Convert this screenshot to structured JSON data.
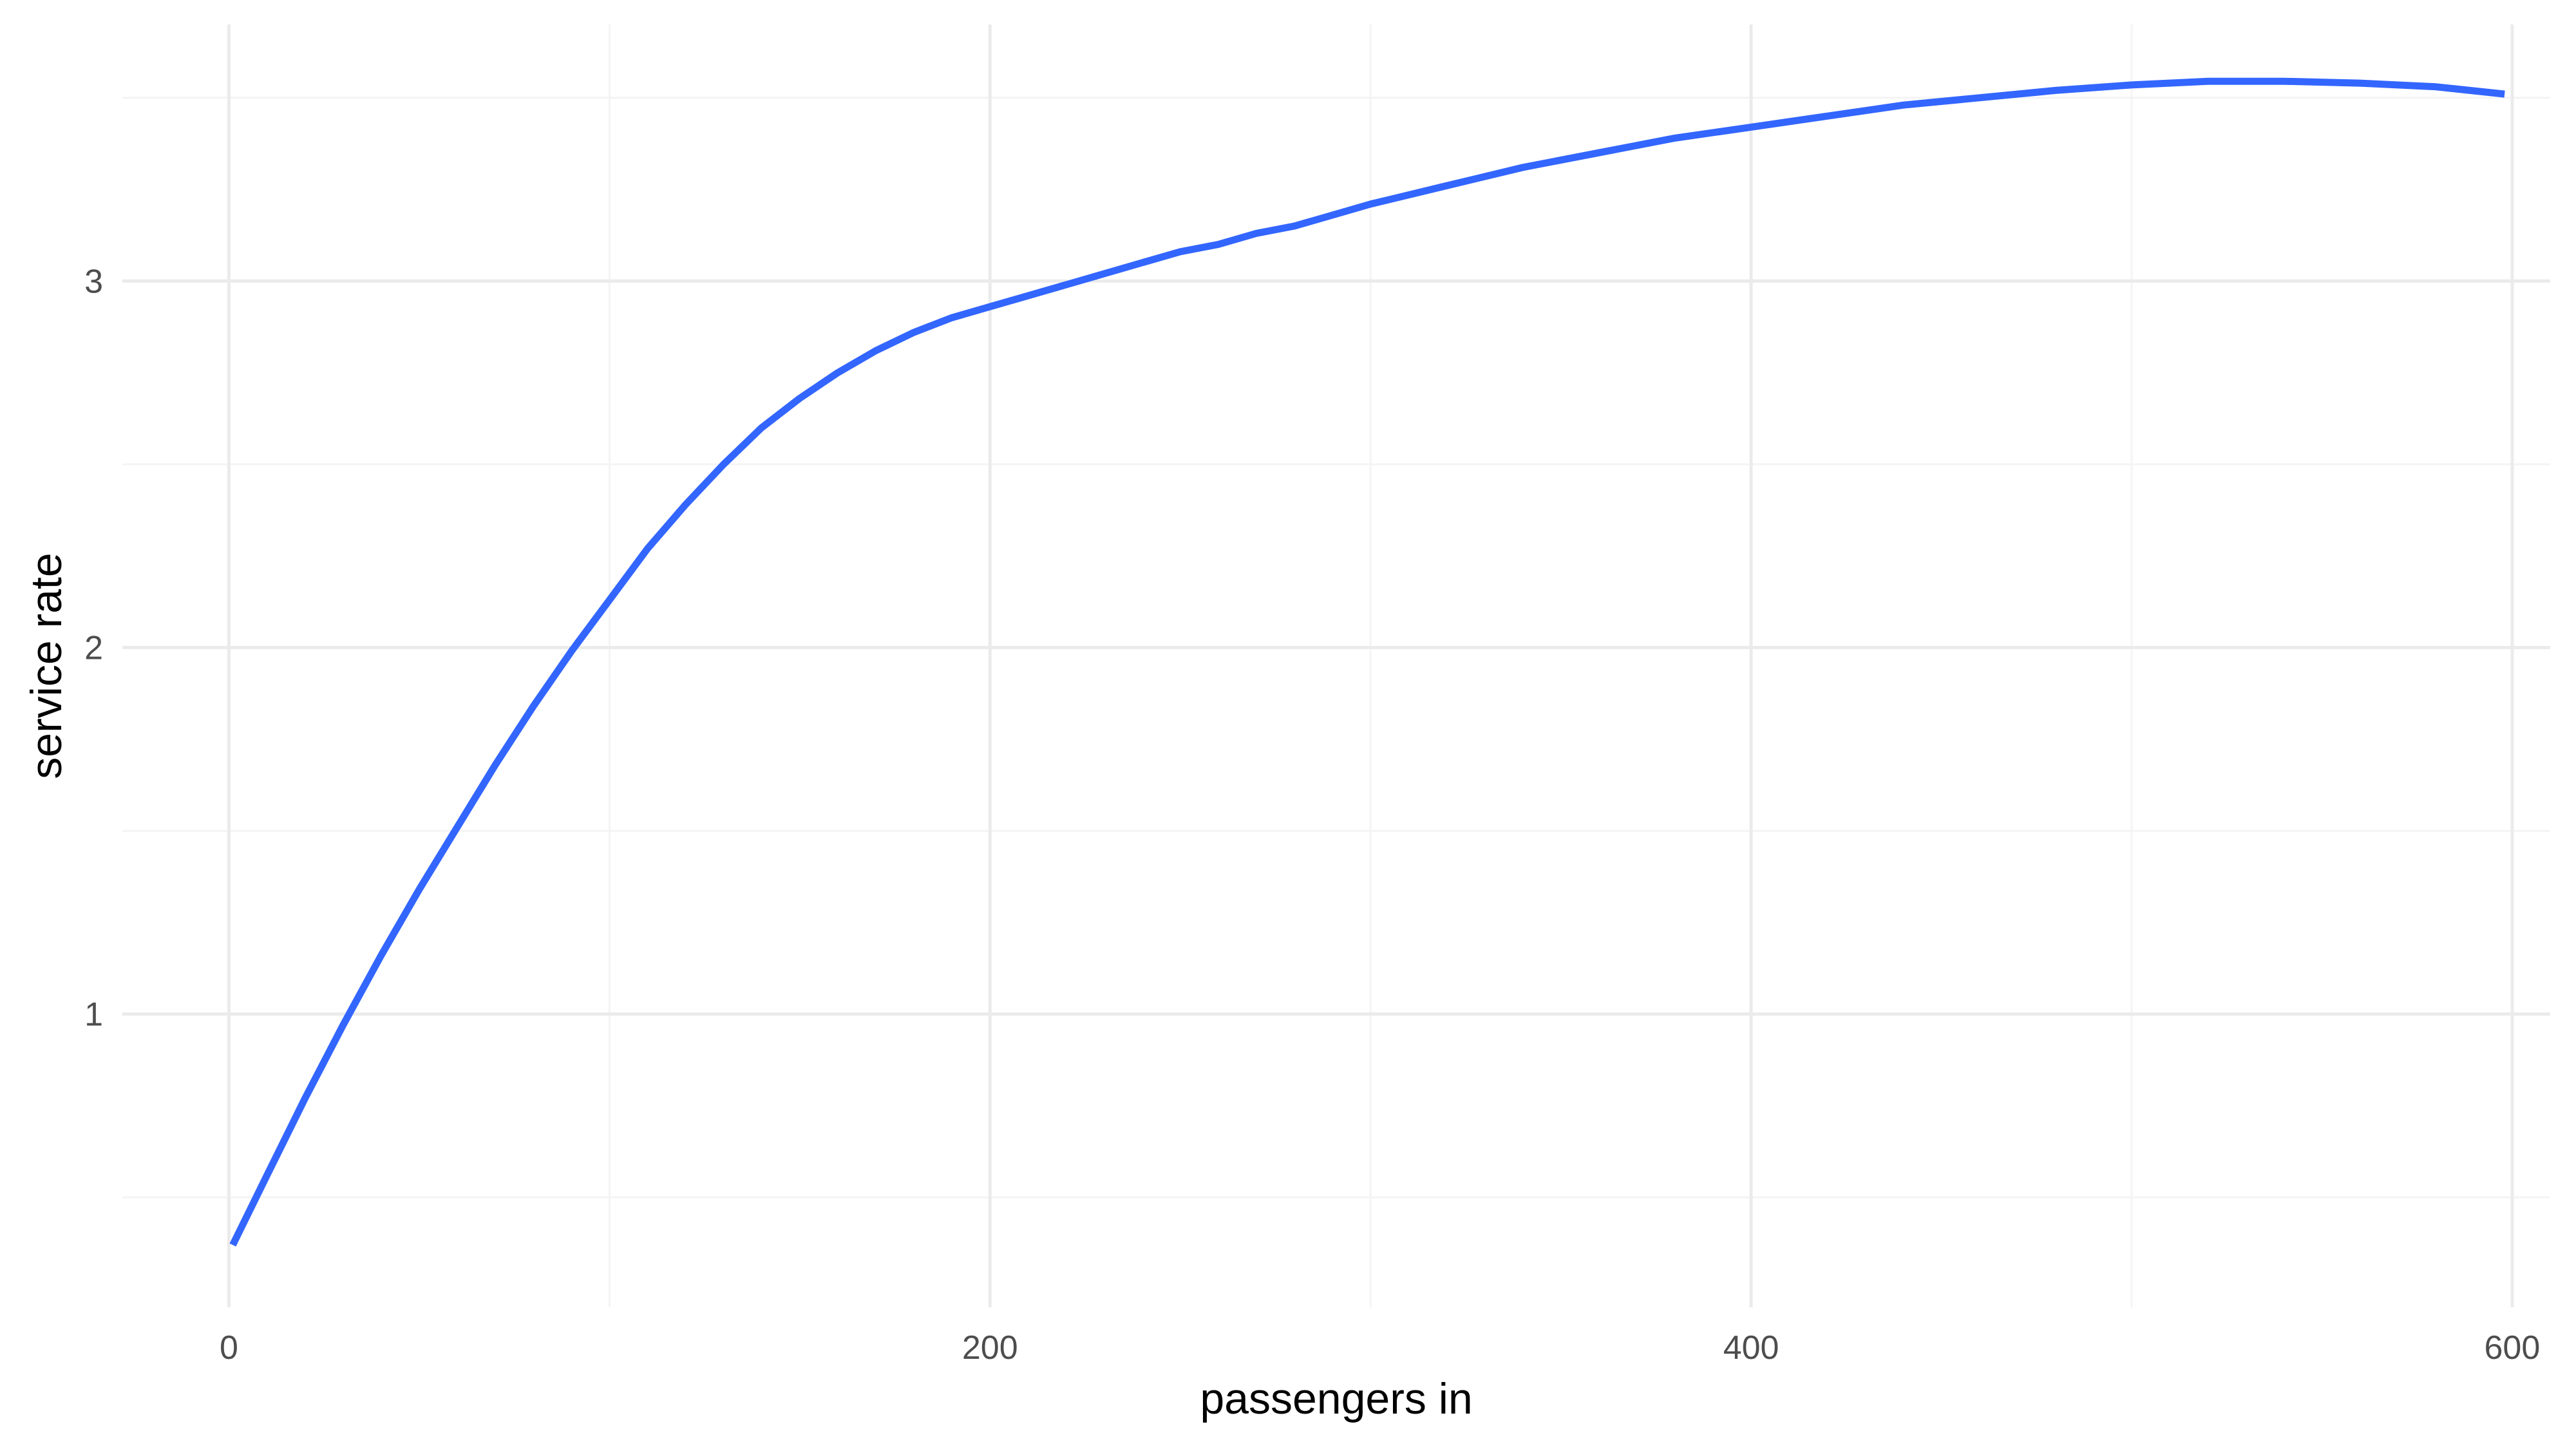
{
  "chart_data": {
    "type": "line",
    "title": "",
    "xlabel": "passengers in",
    "ylabel": "service rate",
    "xlim": [
      -28,
      610
    ],
    "ylim": [
      0.2,
      3.7
    ],
    "x_ticks": [
      0,
      200,
      400,
      600
    ],
    "x_tick_labels": [
      "0",
      "200",
      "400",
      "600"
    ],
    "x_minor_ticks": [
      100,
      300,
      500
    ],
    "y_ticks": [
      1,
      2,
      3
    ],
    "y_tick_labels": [
      "1",
      "2",
      "3"
    ],
    "y_minor_ticks": [
      0.5,
      1.5,
      2.5,
      3.5
    ],
    "grid": true,
    "legend": "none",
    "series": [
      {
        "color": "#3366FF",
        "x": [
          1,
          10,
          20,
          30,
          40,
          50,
          60,
          70,
          80,
          90,
          100,
          110,
          120,
          130,
          140,
          150,
          160,
          170,
          180,
          190,
          200,
          210,
          220,
          230,
          240,
          250,
          260,
          270,
          280,
          290,
          300,
          320,
          340,
          360,
          380,
          400,
          420,
          440,
          460,
          480,
          500,
          520,
          540,
          560,
          580,
          598
        ],
        "y": [
          0.37,
          0.56,
          0.77,
          0.97,
          1.16,
          1.34,
          1.51,
          1.68,
          1.84,
          1.99,
          2.13,
          2.27,
          2.39,
          2.5,
          2.6,
          2.68,
          2.75,
          2.81,
          2.86,
          2.9,
          2.93,
          2.96,
          2.99,
          3.02,
          3.05,
          3.08,
          3.1,
          3.13,
          3.15,
          3.18,
          3.21,
          3.26,
          3.31,
          3.35,
          3.39,
          3.42,
          3.45,
          3.48,
          3.5,
          3.52,
          3.535,
          3.545,
          3.545,
          3.54,
          3.53,
          3.51
        ]
      }
    ]
  },
  "colors": {
    "background": "#ffffff",
    "grid_major": "#ebebeb",
    "grid_minor": "#f4f4f4",
    "line": "#3366FF",
    "tick_text": "#4d4d4d",
    "axis_title": "#000000"
  }
}
